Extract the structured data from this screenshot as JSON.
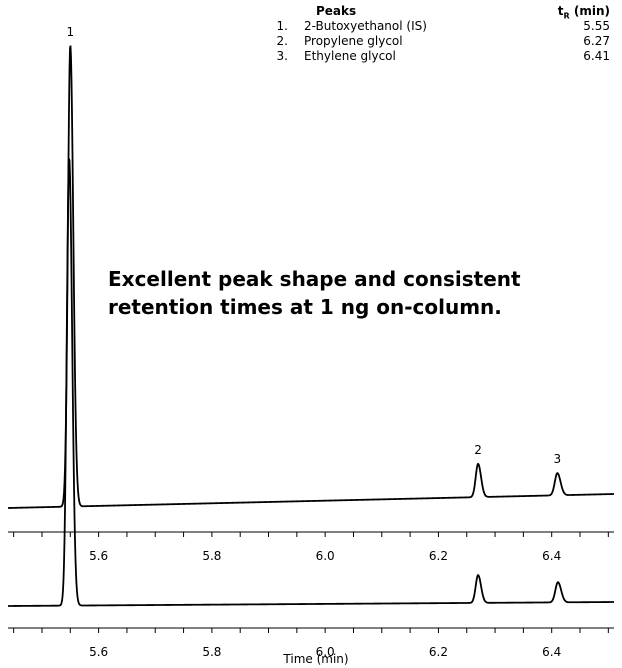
{
  "peak_table": {
    "header_peaks": "Peaks",
    "header_tr": "t",
    "header_tr_sub": "R",
    "header_tr_unit": "(min)",
    "rows": [
      {
        "num": "1.",
        "name": "2-Butoxyethanol (IS)",
        "tr": "5.55"
      },
      {
        "num": "2.",
        "name": "Propylene glycol",
        "tr": "6.27"
      },
      {
        "num": "3.",
        "name": "Ethylene glycol",
        "tr": "6.41"
      }
    ]
  },
  "callout_line1": "Excellent peak shape and consistent",
  "callout_line2": "retention times at 1 ng on-column.",
  "chart_data": {
    "type": "line",
    "xlabel": "Time (min)",
    "xlim": [
      5.44,
      6.51
    ],
    "tick_labels": [
      "5.6",
      "5.8",
      "6.0",
      "6.2",
      "6.4"
    ],
    "tick_values": [
      5.6,
      5.8,
      6.0,
      6.2,
      6.4
    ],
    "peak_labels": [
      "1",
      "2",
      "3"
    ],
    "colors": {
      "trace": "#000000",
      "axis": "#000000"
    },
    "series": [
      {
        "peaks": [
          {
            "label": "1",
            "t": 5.55,
            "height": 1.0
          },
          {
            "label": "2",
            "t": 6.27,
            "height": 0.072
          },
          {
            "label": "3",
            "t": 6.41,
            "height": 0.048
          }
        ]
      },
      {
        "peaks": [
          {
            "t": 5.548,
            "height": 1.0
          },
          {
            "t": 6.27,
            "height": 0.062
          },
          {
            "t": 6.411,
            "height": 0.045
          }
        ]
      }
    ]
  }
}
